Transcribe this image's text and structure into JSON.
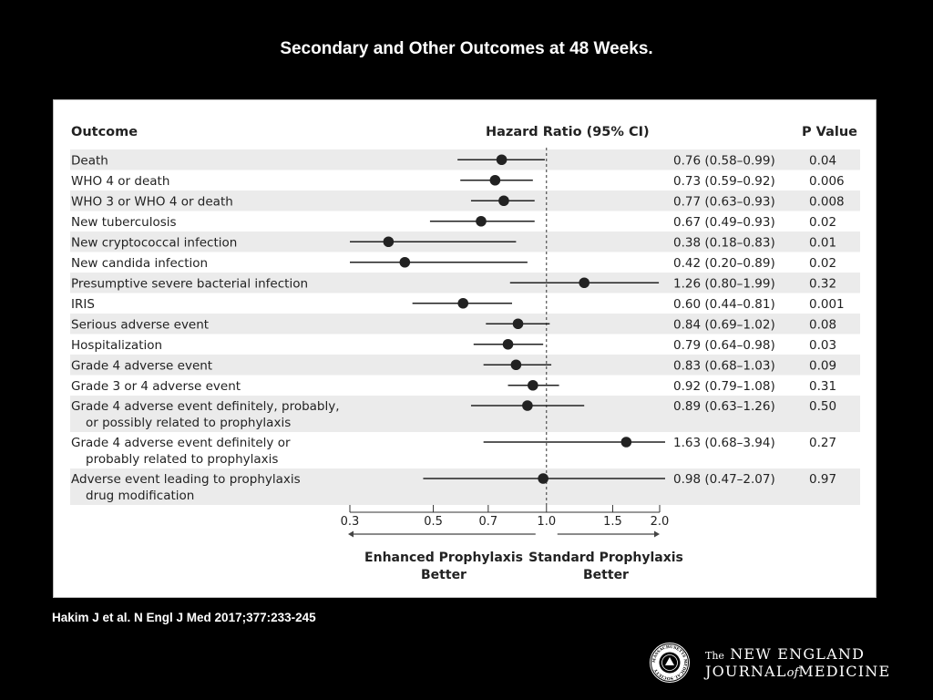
{
  "slide_title": "Secondary and Other Outcomes at 48 Weeks.",
  "citation": "Hakim J et al. N Engl J Med 2017;377:233-245",
  "logo": {
    "prefix": "The",
    "line1": "NEW ENGLAND",
    "line2_a": "JOURNAL",
    "line2_of": "of",
    "line2_b": "MEDICINE",
    "seal_text": "MASSACHUSETTS MEDICAL SOCIETY"
  },
  "colors": {
    "background": "#000000",
    "panel": "#ffffff",
    "row_shade": "#ebebeb",
    "marker": "#222222",
    "text": "#222222"
  },
  "chart_data": {
    "type": "forest",
    "headers": {
      "outcome": "Outcome",
      "hr": "Hazard Ratio (95% CI)",
      "p": "P Value"
    },
    "scale": "log",
    "xlim": [
      0.3,
      2.0
    ],
    "reference_line": 1.0,
    "xticks": [
      0.3,
      0.5,
      0.7,
      1.0,
      1.5,
      2.0
    ],
    "xtick_labels": [
      "0.3",
      "0.5",
      "0.7",
      "1.0",
      "1.5",
      "2.0"
    ],
    "left_label": [
      "Enhanced Prophylaxis",
      "Better"
    ],
    "right_label": [
      "Standard Prophylaxis",
      "Better"
    ],
    "rows": [
      {
        "label": [
          "Death"
        ],
        "hr": 0.76,
        "lo": 0.58,
        "hi": 0.99,
        "hr_text": "0.76 (0.58–0.99)",
        "p": "0.04"
      },
      {
        "label": [
          "WHO 4 or death"
        ],
        "hr": 0.73,
        "lo": 0.59,
        "hi": 0.92,
        "hr_text": "0.73 (0.59–0.92)",
        "p": "0.006"
      },
      {
        "label": [
          "WHO 3 or WHO 4 or death"
        ],
        "hr": 0.77,
        "lo": 0.63,
        "hi": 0.93,
        "hr_text": "0.77 (0.63–0.93)",
        "p": "0.008"
      },
      {
        "label": [
          "New tuberculosis"
        ],
        "hr": 0.67,
        "lo": 0.49,
        "hi": 0.93,
        "hr_text": "0.67 (0.49–0.93)",
        "p": "0.02"
      },
      {
        "label": [
          "New cryptococcal infection"
        ],
        "hr": 0.38,
        "lo": 0.18,
        "hi": 0.83,
        "hr_text": "0.38 (0.18–0.83)",
        "p": "0.01"
      },
      {
        "label": [
          "New candida infection"
        ],
        "hr": 0.42,
        "lo": 0.2,
        "hi": 0.89,
        "hr_text": "0.42 (0.20–0.89)",
        "p": "0.02"
      },
      {
        "label": [
          "Presumptive severe bacterial infection"
        ],
        "hr": 1.26,
        "lo": 0.8,
        "hi": 1.99,
        "hr_text": "1.26 (0.80–1.99)",
        "p": "0.32"
      },
      {
        "label": [
          "IRIS"
        ],
        "hr": 0.6,
        "lo": 0.44,
        "hi": 0.81,
        "hr_text": "0.60 (0.44–0.81)",
        "p": "0.001"
      },
      {
        "label": [
          "Serious adverse event"
        ],
        "hr": 0.84,
        "lo": 0.69,
        "hi": 1.02,
        "hr_text": "0.84 (0.69–1.02)",
        "p": "0.08"
      },
      {
        "label": [
          "Hospitalization"
        ],
        "hr": 0.79,
        "lo": 0.64,
        "hi": 0.98,
        "hr_text": "0.79 (0.64–0.98)",
        "p": "0.03"
      },
      {
        "label": [
          "Grade 4 adverse event"
        ],
        "hr": 0.83,
        "lo": 0.68,
        "hi": 1.03,
        "hr_text": "0.83 (0.68–1.03)",
        "p": "0.09"
      },
      {
        "label": [
          "Grade 3 or 4 adverse event"
        ],
        "hr": 0.92,
        "lo": 0.79,
        "hi": 1.08,
        "hr_text": "0.92 (0.79–1.08)",
        "p": "0.31"
      },
      {
        "label": [
          "Grade 4 adverse event definitely, probably,",
          "or possibly related to prophylaxis"
        ],
        "hr": 0.89,
        "lo": 0.63,
        "hi": 1.26,
        "hr_text": "0.89 (0.63–1.26)",
        "p": "0.50"
      },
      {
        "label": [
          "Grade 4 adverse event definitely or",
          "probably related to prophylaxis"
        ],
        "hr": 1.63,
        "lo": 0.68,
        "hi": 3.94,
        "hr_text": "1.63 (0.68–3.94)",
        "p": "0.27"
      },
      {
        "label": [
          "Adverse event leading to prophylaxis",
          "drug modification"
        ],
        "hr": 0.98,
        "lo": 0.47,
        "hi": 2.07,
        "hr_text": "0.98 (0.47–2.07)",
        "p": "0.97"
      }
    ]
  }
}
